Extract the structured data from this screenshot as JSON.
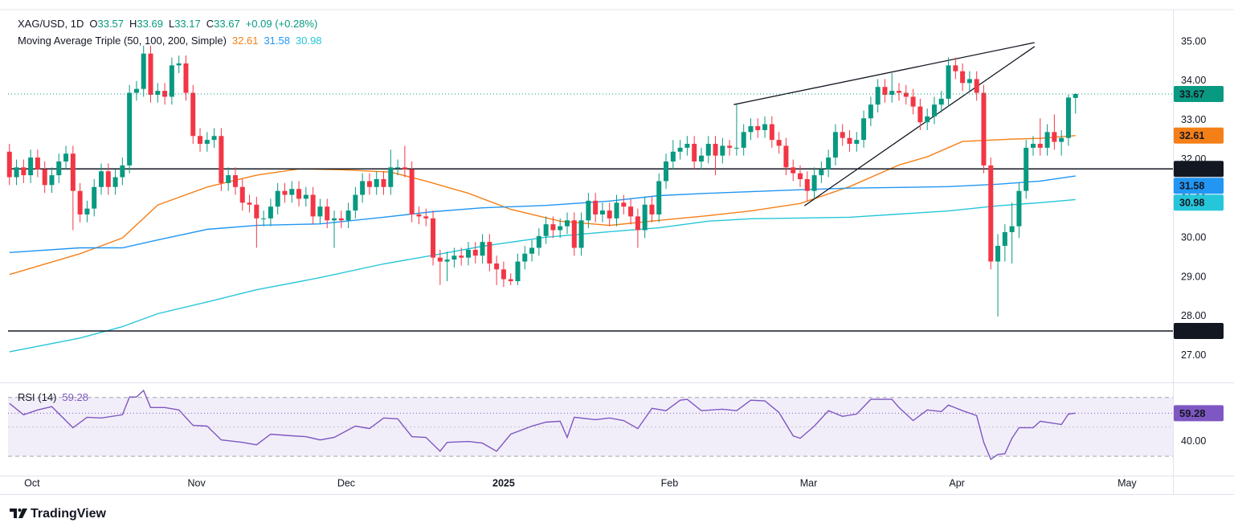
{
  "header": {
    "symbol": "XAG/USD, 1D",
    "open_label": "O",
    "high_label": "H",
    "low_label": "L",
    "close_label": "C",
    "change": "+0.09 (+0.28%)",
    "indicator": "Moving Average Triple (50, 100, 200, Simple)"
  },
  "footer": {
    "brand": "TradingView"
  },
  "chart_data": [
    {
      "type": "candlestick",
      "up_color": "#089981",
      "down_color": "#f23645",
      "open": [
        32.2,
        31.55,
        31.8,
        31.6,
        32.05,
        31.75,
        31.35,
        31.6,
        31.95,
        32.15,
        31.2,
        30.6,
        30.75,
        31.3,
        31.7,
        31.3,
        31.55,
        31.85,
        33.7,
        33.8,
        34.7,
        33.65,
        33.75,
        33.6,
        34.4,
        34.45,
        33.7,
        32.6,
        32.4,
        32.5,
        32.6,
        31.4,
        31.6,
        31.3,
        30.9,
        30.85,
        30.5,
        30.5,
        30.8,
        31.2,
        31.1,
        31.25,
        31.0,
        31.1,
        30.55,
        30.8,
        30.45,
        30.5,
        30.45,
        30.7,
        31.1,
        31.45,
        31.3,
        31.5,
        31.3,
        31.8,
        31.8,
        31.75,
        30.6,
        30.55,
        30.5,
        29.5,
        29.4,
        29.45,
        29.55,
        29.5,
        29.7,
        29.55,
        29.9,
        29.35,
        29.2,
        28.95,
        28.9,
        29.4,
        29.6,
        29.75,
        30.05,
        30.35,
        30.2,
        30.3,
        30.45,
        29.75,
        30.45,
        30.95,
        30.6,
        30.7,
        30.5,
        30.9,
        30.8,
        30.55,
        30.2,
        30.85,
        30.6,
        31.45,
        31.95,
        32.2,
        32.3,
        32.4,
        31.95,
        32.1,
        32.4,
        32.1,
        32.35,
        32.3,
        32.3,
        32.7,
        32.85,
        32.75,
        32.9,
        32.5,
        32.35,
        31.8,
        31.65,
        31.5,
        31.2,
        31.6,
        31.75,
        32.05,
        32.7,
        32.55,
        32.4,
        32.5,
        33.05,
        33.4,
        33.85,
        33.65,
        33.75,
        33.7,
        33.6,
        33.35,
        32.95,
        33.1,
        33.4,
        33.55,
        34.4,
        34.25,
        33.95,
        34.05,
        33.7,
        31.85,
        29.4,
        29.8,
        30.15,
        30.3,
        31.2,
        32.3,
        32.4,
        32.3,
        32.7,
        32.45,
        32.55,
        33.57
      ],
      "high": [
        32.4,
        32.0,
        32.0,
        32.25,
        32.25,
        31.95,
        31.8,
        32.15,
        32.35,
        32.35,
        31.4,
        30.95,
        31.5,
        31.9,
        31.9,
        31.75,
        32.05,
        33.9,
        34.0,
        34.9,
        34.9,
        33.95,
        33.95,
        34.6,
        34.65,
        34.65,
        33.9,
        32.8,
        32.7,
        32.8,
        32.8,
        31.8,
        31.8,
        31.5,
        31.1,
        31.05,
        30.7,
        31.0,
        31.4,
        31.4,
        31.45,
        31.45,
        31.3,
        31.3,
        31.0,
        31.0,
        30.7,
        30.7,
        30.9,
        31.3,
        31.65,
        31.65,
        31.7,
        31.7,
        32.25,
        32.0,
        32.35,
        31.95,
        30.8,
        30.75,
        30.7,
        29.7,
        29.65,
        29.75,
        29.75,
        29.9,
        29.9,
        30.1,
        30.1,
        29.55,
        29.4,
        29.1,
        29.6,
        29.8,
        29.95,
        30.25,
        30.55,
        30.55,
        30.5,
        30.65,
        30.65,
        30.65,
        31.15,
        31.15,
        30.9,
        30.9,
        31.1,
        31.1,
        31.0,
        30.75,
        31.05,
        31.05,
        31.65,
        32.15,
        32.5,
        32.5,
        32.6,
        32.6,
        32.3,
        32.6,
        32.6,
        32.55,
        32.5,
        33.4,
        32.9,
        33.05,
        33.05,
        33.1,
        33.1,
        32.7,
        32.55,
        32.0,
        31.85,
        31.7,
        31.8,
        31.95,
        32.25,
        32.9,
        32.9,
        32.75,
        32.7,
        33.25,
        33.6,
        34.05,
        34.05,
        34.2,
        33.95,
        33.9,
        33.8,
        33.55,
        33.3,
        33.6,
        33.75,
        34.6,
        34.6,
        34.45,
        34.25,
        34.25,
        33.9,
        32.05,
        30.1,
        30.35,
        30.9,
        31.4,
        32.5,
        32.6,
        33.05,
        32.9,
        33.15,
        32.75,
        33.65,
        33.69
      ],
      "low": [
        31.35,
        31.35,
        31.4,
        31.4,
        31.55,
        31.15,
        31.15,
        31.4,
        31.75,
        30.2,
        30.4,
        30.4,
        30.55,
        31.1,
        31.1,
        31.1,
        31.35,
        31.65,
        33.5,
        33.6,
        33.45,
        33.45,
        33.4,
        33.4,
        34.2,
        33.5,
        32.4,
        32.2,
        32.2,
        32.3,
        31.2,
        31.2,
        31.1,
        30.7,
        30.65,
        29.75,
        30.3,
        30.3,
        30.6,
        30.9,
        30.9,
        30.8,
        30.8,
        30.35,
        30.35,
        30.25,
        29.75,
        30.25,
        30.25,
        30.5,
        30.9,
        31.1,
        31.1,
        31.1,
        31.1,
        31.6,
        31.55,
        30.4,
        30.35,
        30.3,
        29.3,
        28.8,
        28.9,
        29.25,
        29.3,
        29.3,
        29.35,
        29.35,
        29.15,
        28.8,
        28.75,
        28.8,
        28.8,
        29.2,
        29.4,
        29.55,
        29.85,
        30.0,
        30.0,
        30.1,
        29.55,
        29.55,
        30.25,
        30.4,
        30.4,
        30.3,
        30.3,
        30.6,
        30.35,
        29.75,
        30.0,
        30.4,
        30.4,
        31.25,
        31.75,
        32.0,
        32.1,
        31.75,
        31.75,
        31.9,
        31.6,
        31.9,
        32.1,
        32.1,
        32.1,
        32.5,
        32.55,
        32.55,
        32.3,
        32.15,
        31.6,
        31.45,
        31.3,
        30.95,
        31.0,
        31.4,
        31.55,
        31.85,
        32.35,
        32.2,
        32.2,
        32.3,
        32.85,
        33.2,
        33.45,
        33.45,
        33.5,
        33.4,
        33.15,
        32.75,
        32.75,
        32.9,
        33.2,
        33.35,
        34.05,
        33.75,
        33.75,
        33.5,
        31.65,
        29.2,
        28.0,
        29.4,
        29.35,
        30.0,
        31.0,
        32.1,
        32.1,
        32.1,
        32.25,
        32.1,
        32.35,
        33.17
      ],
      "close": [
        31.55,
        31.8,
        31.6,
        32.05,
        31.75,
        31.35,
        31.6,
        31.95,
        32.15,
        31.2,
        30.6,
        30.75,
        31.3,
        31.7,
        31.3,
        31.55,
        31.85,
        33.7,
        33.8,
        34.7,
        33.65,
        33.75,
        33.6,
        34.4,
        34.45,
        33.7,
        32.6,
        32.4,
        32.5,
        32.6,
        31.4,
        31.6,
        31.3,
        30.9,
        30.85,
        30.5,
        30.5,
        30.8,
        31.2,
        31.1,
        31.25,
        31.0,
        31.1,
        30.55,
        30.8,
        30.45,
        30.5,
        30.45,
        30.7,
        31.1,
        31.45,
        31.3,
        31.5,
        31.3,
        31.8,
        31.8,
        31.75,
        30.6,
        30.55,
        30.5,
        29.5,
        29.4,
        29.45,
        29.55,
        29.5,
        29.7,
        29.55,
        29.9,
        29.35,
        29.2,
        28.95,
        28.9,
        29.4,
        29.6,
        29.75,
        30.05,
        30.35,
        30.2,
        30.3,
        30.45,
        29.75,
        30.45,
        30.95,
        30.6,
        30.7,
        30.5,
        30.9,
        30.8,
        30.55,
        30.2,
        30.85,
        30.6,
        31.45,
        31.95,
        32.2,
        32.3,
        32.4,
        31.95,
        32.1,
        32.4,
        32.1,
        32.35,
        32.3,
        32.3,
        32.7,
        32.85,
        32.75,
        32.9,
        32.5,
        32.35,
        31.8,
        31.65,
        31.5,
        31.2,
        31.6,
        31.75,
        32.05,
        32.7,
        32.55,
        32.4,
        32.5,
        33.05,
        33.4,
        33.85,
        33.65,
        33.75,
        33.7,
        33.6,
        33.35,
        32.95,
        33.1,
        33.4,
        33.55,
        34.4,
        34.25,
        33.95,
        34.05,
        33.7,
        31.85,
        29.4,
        29.8,
        30.15,
        30.3,
        31.2,
        32.3,
        32.4,
        32.3,
        32.7,
        32.45,
        32.55,
        33.58,
        33.67
      ],
      "series": [
        {
          "color": "#f57f17",
          "x": [
            0,
            10,
            16,
            21,
            28,
            35,
            41,
            47,
            54,
            59,
            65,
            71,
            78,
            85,
            92,
            99,
            105,
            112,
            119,
            126,
            130,
            135,
            142,
            146,
            151
          ],
          "values": [
            29.07,
            29.6,
            30.0,
            30.84,
            31.3,
            31.6,
            31.76,
            31.74,
            31.68,
            31.45,
            31.14,
            30.73,
            30.43,
            30.32,
            30.45,
            30.57,
            30.69,
            30.88,
            31.31,
            31.86,
            32.07,
            32.46,
            32.52,
            32.54,
            32.61
          ]
        },
        {
          "color": "#2196f3",
          "x": [
            0,
            10,
            16,
            21,
            28,
            35,
            44,
            53,
            60,
            67,
            76,
            85,
            92,
            99,
            105,
            112,
            119,
            126,
            133,
            140,
            146,
            151
          ],
          "values": [
            29.63,
            29.75,
            29.75,
            29.95,
            30.22,
            30.32,
            30.36,
            30.53,
            30.67,
            30.77,
            30.83,
            30.94,
            31.08,
            31.14,
            31.18,
            31.23,
            31.27,
            31.29,
            31.31,
            31.37,
            31.45,
            31.58
          ]
        },
        {
          "color": "#26c6da",
          "x": [
            0,
            10,
            16,
            21,
            28,
            35,
            44,
            53,
            60,
            67,
            76,
            85,
            92,
            99,
            105,
            112,
            119,
            126,
            133,
            140,
            146,
            151
          ],
          "values": [
            27.1,
            27.45,
            27.74,
            28.07,
            28.37,
            28.68,
            28.99,
            29.34,
            29.56,
            29.79,
            30.02,
            30.16,
            30.26,
            30.43,
            30.49,
            30.51,
            30.53,
            30.61,
            30.69,
            30.82,
            30.9,
            30.98
          ]
        }
      ],
      "hlines": [
        {
          "value": 31.76,
          "color": "#131722"
        },
        {
          "value": 27.63,
          "color": "#131722"
        }
      ],
      "trendlines": [
        {
          "x": [
            102.6,
            145.2
          ],
          "values": [
            33.4,
            34.98
          ],
          "color": "#131722"
        },
        {
          "x": [
            112.6,
            145.2
          ],
          "values": [
            30.82,
            34.88
          ],
          "color": "#131722"
        }
      ],
      "xlim": [
        -0.2,
        164.8
      ],
      "xticks": [
        {
          "value": 3.2,
          "label": "Oct"
        },
        {
          "value": 26.5,
          "label": "Nov"
        },
        {
          "value": 47.7,
          "label": "Dec"
        },
        {
          "value": 70,
          "label": "2025",
          "bold": true
        },
        {
          "value": 93.5,
          "label": "Feb"
        },
        {
          "value": 113.2,
          "label": "Mar"
        },
        {
          "value": 134.2,
          "label": "Apr"
        },
        {
          "value": 158.3,
          "label": "May"
        }
      ],
      "ylim": [
        26.32,
        35.82
      ],
      "yticks": [
        {
          "value": 27,
          "label": "27.00"
        },
        {
          "value": 28,
          "label": "28.00"
        },
        {
          "value": 29,
          "label": "29.00"
        },
        {
          "value": 30,
          "label": "30.00"
        },
        {
          "value": 31,
          "label": "31.00"
        },
        {
          "value": 32,
          "label": "32.00"
        },
        {
          "value": 33,
          "label": "33.00"
        },
        {
          "value": 34,
          "label": "34.00"
        },
        {
          "value": 35,
          "label": "35.00"
        }
      ]
    },
    {
      "type": "line",
      "title": "RSI (14)",
      "band_color": "#7e57c2",
      "bands": [
        30,
        70
      ],
      "midline": 50,
      "series": [
        {
          "color": "#7e57c2",
          "x": [
            0,
            2,
            4,
            6,
            9,
            11,
            13,
            16,
            17,
            18,
            19,
            20,
            22,
            24,
            26,
            28,
            30,
            33,
            35,
            37,
            40,
            42,
            44,
            46,
            49,
            51,
            53,
            55,
            57,
            59,
            61,
            62,
            65,
            67,
            69,
            71,
            74,
            76,
            78,
            79,
            80,
            83,
            85,
            87,
            89,
            91,
            93,
            95,
            96,
            98,
            101,
            103,
            105,
            107,
            109,
            111,
            112,
            114,
            116,
            118,
            120,
            122,
            125,
            126,
            128,
            130,
            132,
            133,
            135,
            137,
            138,
            139,
            140,
            141,
            142,
            143,
            145,
            146,
            149,
            150,
            151
          ],
          "values": [
            65.9,
            58.2,
            61.5,
            63.7,
            49.4,
            56.5,
            56,
            58.2,
            70.3,
            70.3,
            74.7,
            63.1,
            63.1,
            61.5,
            51,
            50.5,
            41.1,
            39.4,
            37.8,
            45,
            43.9,
            43.3,
            41.1,
            42.8,
            50.5,
            48.8,
            56,
            55.4,
            43.3,
            42.8,
            33.4,
            39.4,
            40,
            38.9,
            33.4,
            45,
            50.5,
            53.2,
            53.8,
            42.8,
            56.5,
            54.9,
            56,
            54.3,
            48.8,
            62.6,
            61,
            68.1,
            68.7,
            61,
            62,
            61,
            68.1,
            67.6,
            59.8,
            43.9,
            42.2,
            50.5,
            61,
            57.1,
            58.7,
            68.7,
            68.7,
            63.1,
            54.3,
            61.5,
            60.4,
            64.8,
            61,
            57.6,
            39.4,
            27.9,
            31.2,
            31.7,
            42.2,
            49.4,
            49.4,
            53.8,
            51.6,
            58.7,
            59.28
          ]
        }
      ],
      "ylim": [
        16.86,
        79.67
      ],
      "yticks": [
        {
          "value": 40,
          "label": "40.00"
        }
      ]
    }
  ]
}
